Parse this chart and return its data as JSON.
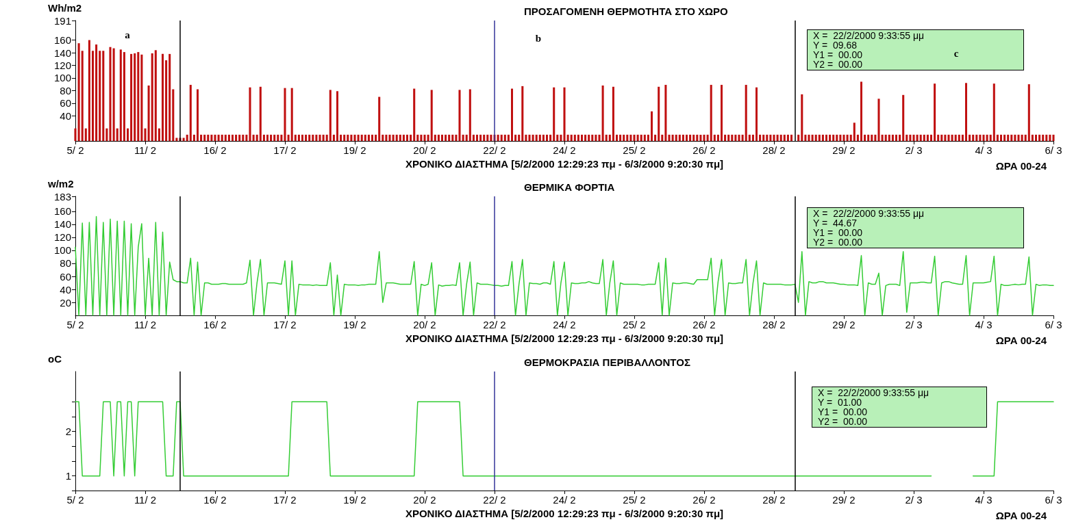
{
  "chart_data": [
    {
      "type": "bar",
      "title": "ΠΡΟΣΑΓΟΜΕΝΗ ΘΕΡΜΟΤΗΤΑ ΣΤΟ ΧΩΡΟ",
      "ylabel": "Wh/m2",
      "xlabel": "ΧΡΟΝΙΚΟ ΔΙΑΣΤΗΜΑ [5/2/2000 12:29:23 πμ - 6/3/2000 9:20:30 πμ]",
      "categories": [
        "5/ 2",
        null,
        null,
        null,
        null,
        null,
        null,
        null,
        null,
        null,
        null,
        null,
        null,
        null,
        null,
        null,
        null,
        null,
        null,
        null,
        "11/ 2",
        null,
        null,
        null,
        null,
        null,
        null,
        null,
        null,
        null,
        null,
        null,
        null,
        null,
        null,
        null,
        null,
        null,
        null,
        null,
        "16/ 2",
        null,
        null,
        null,
        null,
        null,
        null,
        null,
        null,
        null,
        null,
        null,
        null,
        null,
        null,
        null,
        null,
        null,
        null,
        null,
        "17/ 2",
        null,
        null,
        null,
        null,
        null,
        null,
        null,
        null,
        null,
        null,
        null,
        null,
        null,
        null,
        null,
        null,
        null,
        null,
        null,
        "19/ 2",
        null,
        null,
        null,
        null,
        null,
        null,
        null,
        null,
        null,
        null,
        null,
        null,
        null,
        null,
        null,
        null,
        null,
        null,
        null,
        "20/ 2",
        null,
        null,
        null,
        null,
        null,
        null,
        null,
        null,
        null,
        null,
        null,
        null,
        null,
        null,
        null,
        null,
        null,
        null,
        null,
        "22/ 2",
        null,
        null,
        null,
        null,
        null,
        null,
        null,
        null,
        null,
        null,
        null,
        null,
        null,
        null,
        null,
        null,
        null,
        null,
        null,
        "24/ 2",
        null,
        null,
        null,
        null,
        null,
        null,
        null,
        null,
        null,
        null,
        null,
        null,
        null,
        null,
        null,
        null,
        null,
        null,
        null,
        "25/ 2",
        null,
        null,
        null,
        null,
        null,
        null,
        null,
        null,
        null,
        null,
        null,
        null,
        null,
        null,
        null,
        null,
        null,
        null,
        null,
        "26/ 2",
        null,
        null,
        null,
        null,
        null,
        null,
        null,
        null,
        null,
        null,
        null,
        null,
        null,
        null,
        null,
        null,
        null,
        null,
        null,
        "28/ 2",
        null,
        null,
        null,
        null,
        null,
        null,
        null,
        null,
        null,
        null,
        null,
        null,
        null,
        null,
        null,
        null,
        null,
        null,
        null,
        "29/ 2",
        null,
        null,
        null,
        null,
        null,
        null,
        null,
        null,
        null,
        null,
        null,
        null,
        null,
        null,
        null,
        null,
        null,
        null,
        null,
        "2/ 3",
        null,
        null,
        null,
        null,
        null,
        null,
        null,
        null,
        null,
        null,
        null,
        null,
        null,
        null,
        null,
        null,
        null,
        null,
        null,
        "4/ 3",
        null,
        null,
        null,
        null,
        null,
        null,
        null,
        null,
        null,
        null,
        null,
        null,
        null,
        null,
        null,
        null,
        null,
        null,
        null,
        "6/ 3"
      ],
      "ylim": [
        0,
        191
      ],
      "yticks": [
        40,
        60,
        80,
        100,
        120,
        140,
        160,
        191
      ],
      "color": "#c01010",
      "values": [
        20,
        155,
        143,
        20,
        160,
        143,
        153,
        143,
        143,
        20,
        149,
        147,
        20,
        145,
        141,
        20,
        138,
        139,
        141,
        137,
        20,
        88,
        139,
        144,
        20,
        138,
        128,
        138,
        82,
        5,
        5,
        5,
        10,
        89,
        10,
        82,
        10,
        10,
        10,
        10,
        10,
        10,
        10,
        10,
        10,
        10,
        10,
        10,
        10,
        10,
        85,
        10,
        10,
        86,
        10,
        10,
        10,
        10,
        10,
        10,
        84,
        10,
        84,
        10,
        10,
        10,
        10,
        10,
        10,
        10,
        10,
        10,
        10,
        81,
        10,
        79,
        10,
        10,
        10,
        10,
        10,
        10,
        10,
        10,
        10,
        10,
        10,
        70,
        10,
        10,
        10,
        10,
        10,
        10,
        10,
        10,
        10,
        83,
        10,
        10,
        10,
        10,
        81,
        10,
        10,
        10,
        10,
        10,
        10,
        10,
        81,
        10,
        10,
        82,
        10,
        10,
        10,
        10,
        10,
        10,
        10,
        10,
        10,
        10,
        10,
        83,
        10,
        10,
        87,
        10,
        10,
        10,
        10,
        10,
        10,
        10,
        10,
        85,
        10,
        10,
        85,
        10,
        10,
        10,
        10,
        10,
        10,
        10,
        10,
        10,
        10,
        88,
        10,
        10,
        86,
        10,
        10,
        10,
        10,
        10,
        10,
        10,
        10,
        10,
        10,
        47,
        10,
        86,
        10,
        89,
        10,
        10,
        10,
        10,
        10,
        10,
        10,
        10,
        10,
        10,
        10,
        10,
        89,
        10,
        10,
        89,
        10,
        10,
        10,
        10,
        10,
        10,
        89,
        10,
        10,
        85,
        10,
        10,
        10,
        10,
        10,
        10,
        10,
        10,
        10,
        10,
        null,
        10,
        74,
        10,
        10,
        10,
        10,
        10,
        10,
        10,
        10,
        10,
        10,
        10,
        10,
        10,
        10,
        29,
        10,
        94,
        10,
        10,
        10,
        10,
        67,
        10,
        10,
        10,
        10,
        10,
        10,
        73,
        10,
        10,
        10,
        10,
        10,
        10,
        10,
        10,
        91,
        10,
        10,
        10,
        10,
        10,
        10,
        10,
        10,
        92,
        10,
        10,
        10,
        10,
        10,
        10,
        10,
        91,
        10,
        10,
        10,
        10,
        10,
        10,
        10,
        10,
        10,
        90,
        10,
        10,
        10,
        10,
        10,
        10,
        10
      ],
      "ref_lines": [
        {
          "axis": "x",
          "value": "22/ 2",
          "color": "#333399"
        }
      ],
      "annotations": [
        "X =  22/2/2000 9:33:55 μμ\nY =  09.68\nY1 =  00.00\nY2 =  00.00",
        "ΩΡΑ 00-24",
        "a",
        "b",
        "c"
      ]
    },
    {
      "type": "line",
      "title": "ΘΕΡΜΙΚΑ ΦΟΡΤΙΑ",
      "ylabel": "w/m2",
      "xlabel": "ΧΡΟΝΙΚΟ ΔΙΑΣΤΗΜΑ [5/2/2000 12:29:23 πμ - 6/3/2000 9:20:30 πμ]",
      "categories": [
        "5/ 2",
        null,
        null,
        null,
        null,
        null,
        null,
        null,
        null,
        null,
        null,
        null,
        null,
        null,
        null,
        null,
        null,
        null,
        null,
        null,
        "11/ 2",
        null,
        null,
        null,
        null,
        null,
        null,
        null,
        null,
        null,
        null,
        null,
        null,
        null,
        null,
        null,
        null,
        null,
        null,
        null,
        "16/ 2",
        null,
        null,
        null,
        null,
        null,
        null,
        null,
        null,
        null,
        null,
        null,
        null,
        null,
        null,
        null,
        null,
        null,
        null,
        null,
        "17/ 2",
        null,
        null,
        null,
        null,
        null,
        null,
        null,
        null,
        null,
        null,
        null,
        null,
        null,
        null,
        null,
        null,
        null,
        null,
        null,
        "19/ 2",
        null,
        null,
        null,
        null,
        null,
        null,
        null,
        null,
        null,
        null,
        null,
        null,
        null,
        null,
        null,
        null,
        null,
        null,
        null,
        "20/ 2",
        null,
        null,
        null,
        null,
        null,
        null,
        null,
        null,
        null,
        null,
        null,
        null,
        null,
        null,
        null,
        null,
        null,
        null,
        null,
        "22/ 2",
        null,
        null,
        null,
        null,
        null,
        null,
        null,
        null,
        null,
        null,
        null,
        null,
        null,
        null,
        null,
        null,
        null,
        null,
        null,
        "24/ 2",
        null,
        null,
        null,
        null,
        null,
        null,
        null,
        null,
        null,
        null,
        null,
        null,
        null,
        null,
        null,
        null,
        null,
        null,
        null,
        "25/ 2",
        null,
        null,
        null,
        null,
        null,
        null,
        null,
        null,
        null,
        null,
        null,
        null,
        null,
        null,
        null,
        null,
        null,
        null,
        null,
        "26/ 2",
        null,
        null,
        null,
        null,
        null,
        null,
        null,
        null,
        null,
        null,
        null,
        null,
        null,
        null,
        null,
        null,
        null,
        null,
        null,
        "28/ 2",
        null,
        null,
        null,
        null,
        null,
        null,
        null,
        null,
        null,
        null,
        null,
        null,
        null,
        null,
        null,
        null,
        null,
        null,
        null,
        "29/ 2",
        null,
        null,
        null,
        null,
        null,
        null,
        null,
        null,
        null,
        null,
        null,
        null,
        null,
        null,
        null,
        null,
        null,
        null,
        null,
        "2/ 3",
        null,
        null,
        null,
        null,
        null,
        null,
        null,
        null,
        null,
        null,
        null,
        null,
        null,
        null,
        null,
        null,
        null,
        null,
        null,
        "4/ 3",
        null,
        null,
        null,
        null,
        null,
        null,
        null,
        null,
        null,
        null,
        null,
        null,
        null,
        null,
        null,
        null,
        null,
        null,
        null,
        "6/ 3"
      ],
      "ylim": [
        0,
        183
      ],
      "yticks": [
        20,
        40,
        60,
        80,
        100,
        120,
        140,
        160,
        183
      ],
      "color": "#33cc33",
      "values": [
        105,
        0,
        142,
        0,
        143,
        0,
        152,
        0,
        143,
        0,
        148,
        0,
        145,
        0,
        145,
        0,
        141,
        0,
        105,
        141,
        0,
        88,
        0,
        143,
        0,
        128,
        0,
        82,
        55,
        52,
        52,
        50,
        50,
        88,
        0,
        82,
        0,
        50,
        50,
        48,
        48,
        48,
        49,
        49,
        48,
        48,
        48,
        48,
        48,
        50,
        85,
        0,
        50,
        86,
        0,
        50,
        50,
        50,
        49,
        48,
        84,
        0,
        84,
        0,
        48,
        47,
        47,
        47,
        46,
        47,
        46,
        46,
        46,
        81,
        0,
        62,
        0,
        48,
        47,
        47,
        47,
        46,
        47,
        47,
        48,
        48,
        48,
        98,
        20,
        50,
        50,
        50,
        49,
        48,
        48,
        48,
        48,
        83,
        0,
        48,
        46,
        48,
        81,
        0,
        47,
        45,
        46,
        46,
        47,
        46,
        81,
        0,
        48,
        82,
        0,
        50,
        48,
        48,
        48,
        47,
        46,
        46,
        45,
        46,
        46,
        83,
        0,
        48,
        86,
        0,
        50,
        49,
        49,
        48,
        50,
        50,
        48,
        83,
        0,
        50,
        82,
        0,
        50,
        49,
        49,
        50,
        50,
        52,
        50,
        49,
        49,
        86,
        0,
        50,
        84,
        0,
        50,
        48,
        48,
        48,
        48,
        48,
        47,
        47,
        48,
        48,
        48,
        81,
        0,
        88,
        0,
        50,
        49,
        49,
        50,
        50,
        49,
        48,
        55,
        55,
        55,
        55,
        88,
        0,
        52,
        86,
        0,
        50,
        49,
        49,
        50,
        50,
        86,
        0,
        50,
        84,
        0,
        50,
        48,
        48,
        48,
        48,
        48,
        47,
        47,
        47,
        48,
        20,
        98,
        0,
        52,
        50,
        50,
        52,
        52,
        50,
        50,
        50,
        49,
        48,
        48,
        47,
        47,
        47,
        46,
        92,
        0,
        50,
        48,
        48,
        65,
        0,
        46,
        48,
        48,
        48,
        46,
        98,
        5,
        50,
        50,
        50,
        51,
        51,
        50,
        50,
        91,
        0,
        50,
        52,
        52,
        50,
        49,
        48,
        48,
        92,
        0,
        50,
        50,
        50,
        50,
        51,
        52,
        91,
        0,
        48,
        46,
        46,
        47,
        48,
        47,
        48,
        48,
        90,
        0,
        48,
        46,
        47,
        47,
        46,
        46
      ],
      "ref_lines": [
        {
          "axis": "x",
          "value": "22/ 2",
          "color": "#333399"
        }
      ],
      "annotations": [
        "X =  22/2/2000 9:33:55 μμ\nY =  44.67\nY1 =  00.00\nY2 =  00.00",
        "ΩΡΑ 00-24"
      ]
    },
    {
      "type": "line",
      "title": "ΘΕΡΜΟΚΡΑΣΙΑ ΠΕΡΙΒΑΛΛΟΝΤΟΣ",
      "ylabel": "oC",
      "xlabel": "ΧΡΟΝΙΚΟ ΔΙΑΣΤΗΜΑ [5/2/2000 12:29:23 πμ - 6/3/2000 9:20:30 πμ]",
      "categories": [
        "5/ 2",
        null,
        null,
        null,
        null,
        null,
        null,
        null,
        null,
        null,
        null,
        null,
        null,
        null,
        null,
        null,
        null,
        null,
        null,
        null,
        "11/ 2",
        null,
        null,
        null,
        null,
        null,
        null,
        null,
        null,
        null,
        null,
        null,
        null,
        null,
        null,
        null,
        null,
        null,
        null,
        null,
        "16/ 2",
        null,
        null,
        null,
        null,
        null,
        null,
        null,
        null,
        null,
        null,
        null,
        null,
        null,
        null,
        null,
        null,
        null,
        null,
        null,
        "17/ 2",
        null,
        null,
        null,
        null,
        null,
        null,
        null,
        null,
        null,
        null,
        null,
        null,
        null,
        null,
        null,
        null,
        null,
        null,
        null,
        "19/ 2",
        null,
        null,
        null,
        null,
        null,
        null,
        null,
        null,
        null,
        null,
        null,
        null,
        null,
        null,
        null,
        null,
        null,
        null,
        null,
        "20/ 2",
        null,
        null,
        null,
        null,
        null,
        null,
        null,
        null,
        null,
        null,
        null,
        null,
        null,
        null,
        null,
        null,
        null,
        null,
        null,
        "22/ 2",
        null,
        null,
        null,
        null,
        null,
        null,
        null,
        null,
        null,
        null,
        null,
        null,
        null,
        null,
        null,
        null,
        null,
        null,
        null,
        "24/ 2",
        null,
        null,
        null,
        null,
        null,
        null,
        null,
        null,
        null,
        null,
        null,
        null,
        null,
        null,
        null,
        null,
        null,
        null,
        null,
        "25/ 2",
        null,
        null,
        null,
        null,
        null,
        null,
        null,
        null,
        null,
        null,
        null,
        null,
        null,
        null,
        null,
        null,
        null,
        null,
        null,
        "26/ 2",
        null,
        null,
        null,
        null,
        null,
        null,
        null,
        null,
        null,
        null,
        null,
        null,
        null,
        null,
        null,
        null,
        null,
        null,
        null,
        "28/ 2",
        null,
        null,
        null,
        null,
        null,
        null,
        null,
        null,
        null,
        null,
        null,
        null,
        null,
        null,
        null,
        null,
        null,
        null,
        null,
        "29/ 2",
        null,
        null,
        null,
        null,
        null,
        null,
        null,
        null,
        null,
        null,
        null,
        null,
        null,
        null,
        null,
        null,
        null,
        null,
        null,
        "2/ 3",
        null,
        null,
        null,
        null,
        null,
        null,
        null,
        null,
        null,
        null,
        null,
        null,
        null,
        null,
        null,
        null,
        null,
        null,
        null,
        "4/ 3",
        null,
        null,
        null,
        null,
        null,
        null,
        null,
        null,
        null,
        null,
        null,
        null,
        null,
        null,
        null,
        null,
        null,
        null,
        null,
        "6/ 3"
      ],
      "ylim": [
        0.67,
        3.35
      ],
      "yticks": [
        {
          "value": 0.67,
          "label": null
        },
        1,
        {
          "value": 1.33,
          "label": null
        },
        {
          "value": 1.67,
          "label": null
        },
        2,
        {
          "value": 2.33,
          "label": null
        },
        {
          "value": 2.67,
          "label": null
        }
      ],
      "color": "#33cc33",
      "values": [
        2.67,
        2.67,
        1,
        1,
        1,
        1,
        1,
        1,
        2.67,
        2.67,
        2.67,
        1,
        2.67,
        2.67,
        1,
        2.67,
        2.67,
        1,
        2.67,
        2.67,
        2.67,
        2.67,
        2.67,
        2.67,
        2.67,
        2.67,
        1,
        1,
        1,
        2.67,
        2.67,
        1,
        1,
        1,
        1,
        1,
        1,
        1,
        1,
        1,
        1,
        1,
        1,
        1,
        1,
        1,
        1,
        1,
        1,
        1,
        1,
        1,
        1,
        1,
        1,
        1,
        1,
        1,
        1,
        1,
        1,
        1,
        2.67,
        2.67,
        2.67,
        2.67,
        2.67,
        2.67,
        2.67,
        2.67,
        2.67,
        2.67,
        2.67,
        1,
        1,
        1,
        1,
        1,
        1,
        1,
        1,
        1,
        1,
        1,
        1,
        1,
        1,
        1,
        1,
        1,
        1,
        1,
        1,
        1,
        1,
        1,
        1,
        1,
        2.67,
        2.67,
        2.67,
        2.67,
        2.67,
        2.67,
        2.67,
        2.67,
        2.67,
        2.67,
        2.67,
        2.67,
        2.67,
        1,
        1,
        1,
        1,
        1,
        1,
        1,
        1,
        1,
        1,
        1,
        1,
        1,
        1,
        1,
        1,
        1,
        1,
        1,
        1,
        1,
        1,
        1,
        1,
        1,
        1,
        1,
        1,
        1,
        1,
        1,
        1,
        1,
        1,
        1,
        1,
        1,
        1,
        1,
        1,
        1,
        1,
        1,
        1,
        1,
        1,
        1,
        1,
        1,
        1,
        1,
        1,
        1,
        1,
        1,
        1,
        1,
        1,
        1,
        1,
        1,
        1,
        1,
        1,
        1,
        1,
        1,
        1,
        1,
        1,
        1,
        1,
        1,
        1,
        1,
        1,
        1,
        1,
        1,
        1,
        1,
        1,
        1,
        1,
        1,
        1,
        1,
        1,
        1,
        1,
        1,
        1,
        1,
        1,
        1,
        1,
        1,
        1,
        1,
        1,
        1,
        1,
        1,
        1,
        1,
        1,
        1,
        1,
        1,
        1,
        1,
        1,
        1,
        1,
        1,
        1,
        1,
        1,
        1,
        1,
        1,
        1,
        1,
        1,
        1,
        1,
        1,
        1,
        1,
        1,
        1,
        1,
        1,
        1,
        1,
        null,
        null,
        null,
        null,
        null,
        null,
        null,
        null,
        null,
        null,
        null,
        1,
        1,
        1,
        1,
        1,
        1,
        1,
        2.67,
        2.67,
        2.67,
        2.67,
        2.67,
        2.67,
        2.67,
        2.67,
        2.67,
        2.67,
        2.67,
        2.67,
        2.67,
        2.67,
        2.67,
        2.67,
        2.67
      ],
      "ref_lines": [
        {
          "axis": "x",
          "value": "22/ 2",
          "color": "#333399"
        }
      ],
      "annotations": [
        "X =  22/2/2000 9:33:55 μμ\nY =  01.00\nY1 =  00.00\nY2 =  00.00",
        "ΩΡΑ 00-24"
      ]
    }
  ]
}
